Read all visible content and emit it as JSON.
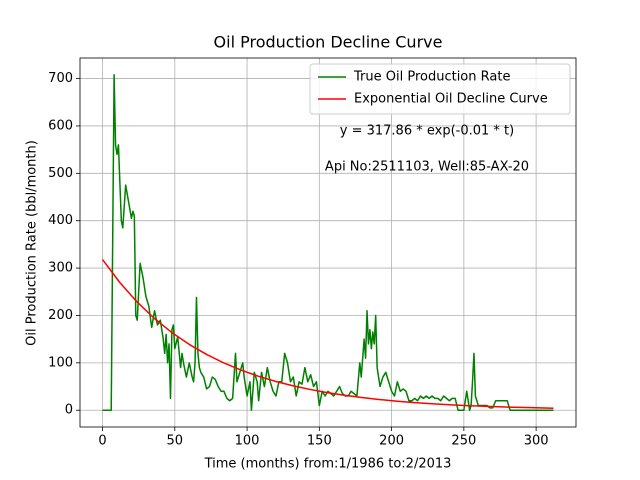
{
  "chart_data": {
    "type": "line",
    "title": "Oil Production Decline Curve",
    "x_label": "Time (months) from:1/1986 to:2/2013",
    "y_label": "Oil Production Rate (bbl/month)",
    "annotations": [
      "y = 317.86 * exp(-0.01 * t)",
      "Api No:2511103, Well:85-AX-20"
    ],
    "xlim": [
      -15.6,
      327.6
    ],
    "ylim": [
      -35.4,
      743.4
    ],
    "xticks": [
      0,
      50,
      100,
      150,
      200,
      250,
      300
    ],
    "yticks": [
      0,
      100,
      200,
      300,
      400,
      500,
      600,
      700
    ],
    "grid": true,
    "legend": "upper right",
    "series": [
      {
        "name": "True Oil Production Rate",
        "color": "#008000",
        "x": [
          0,
          6,
          8,
          9,
          10,
          11,
          13,
          14,
          16,
          18,
          20,
          21,
          22,
          23,
          24,
          26,
          28,
          30,
          32,
          34,
          36,
          38,
          40,
          42,
          43,
          44,
          45,
          46,
          47,
          48,
          49,
          50,
          52,
          54,
          55,
          56,
          58,
          60,
          62,
          63,
          64,
          65,
          66,
          67,
          68,
          70,
          72,
          74,
          76,
          78,
          80,
          82,
          84,
          86,
          88,
          90,
          92,
          93,
          95,
          97,
          98,
          100,
          102,
          103,
          105,
          107,
          108,
          110,
          112,
          114,
          116,
          118,
          120,
          122,
          124,
          126,
          128,
          130,
          132,
          134,
          136,
          138,
          140,
          142,
          144,
          146,
          148,
          150,
          152,
          154,
          156,
          158,
          160,
          162,
          164,
          166,
          168,
          170,
          172,
          174,
          176,
          178,
          179,
          181,
          182,
          183,
          184,
          185,
          186,
          187,
          188,
          189,
          190,
          192,
          194,
          196,
          198,
          200,
          202,
          204,
          206,
          208,
          210,
          212,
          214,
          216,
          218,
          220,
          222,
          224,
          226,
          228,
          230,
          232,
          234,
          236,
          238,
          240,
          242,
          244,
          246,
          248,
          250,
          252,
          254,
          255,
          256,
          257,
          258,
          260,
          262,
          264,
          266,
          268,
          270,
          272,
          274,
          276,
          278,
          280,
          282,
          290,
          300,
          312
        ],
        "values": [
          0,
          0,
          708,
          560,
          540,
          560,
          400,
          385,
          475,
          440,
          405,
          420,
          410,
          200,
          190,
          310,
          280,
          240,
          220,
          175,
          210,
          180,
          190,
          150,
          120,
          160,
          100,
          140,
          25,
          170,
          180,
          130,
          155,
          90,
          120,
          100,
          70,
          100,
          70,
          60,
          100,
          238,
          120,
          90,
          80,
          70,
          45,
          50,
          70,
          65,
          50,
          40,
          40,
          25,
          20,
          25,
          120,
          60,
          80,
          100,
          70,
          30,
          60,
          0,
          80,
          60,
          20,
          80,
          50,
          90,
          60,
          40,
          30,
          60,
          60,
          120,
          100,
          60,
          70,
          30,
          60,
          55,
          90,
          60,
          75,
          50,
          60,
          10,
          40,
          30,
          40,
          35,
          30,
          40,
          50,
          35,
          30,
          30,
          40,
          35,
          30,
          100,
          70,
          150,
          110,
          210,
          140,
          170,
          130,
          165,
          140,
          200,
          90,
          50,
          70,
          80,
          60,
          40,
          30,
          60,
          40,
          45,
          40,
          20,
          20,
          25,
          20,
          30,
          25,
          30,
          25,
          30,
          25,
          25,
          20,
          30,
          25,
          20,
          25,
          25,
          0,
          0,
          0,
          40,
          0,
          10,
          60,
          120,
          30,
          10,
          10,
          10,
          10,
          5,
          5,
          20,
          20,
          20,
          20,
          20,
          0,
          0,
          0,
          0
        ]
      },
      {
        "name": "Exponential Oil Decline Curve",
        "color": "#ff0000",
        "x": [
          0,
          12,
          24,
          36,
          48,
          60,
          72,
          84,
          96,
          108,
          120,
          132,
          144,
          156,
          168,
          180,
          192,
          204,
          216,
          228,
          240,
          252,
          264,
          276,
          288,
          300,
          312
        ],
        "values": [
          317.9,
          269.3,
          228.2,
          193.3,
          163.9,
          138.9,
          117.7,
          99.7,
          84.5,
          71.6,
          60.7,
          51.4,
          43.6,
          36.9,
          31.3,
          26.5,
          22.5,
          19.0,
          16.1,
          13.7,
          11.6,
          9.8,
          8.3,
          7.0,
          6.0,
          5.1,
          4.3
        ]
      }
    ]
  }
}
